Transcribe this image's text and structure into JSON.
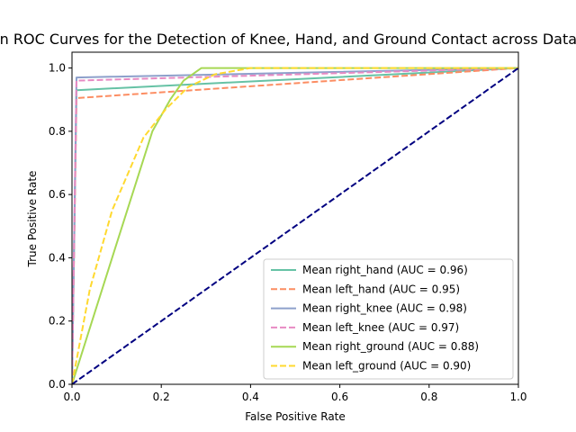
{
  "chart_data": {
    "type": "line",
    "title": "Mean ROC Curves for the Detection of Knee, Hand, and Ground Contact across Datasets",
    "xlabel": "False Positive Rate",
    "ylabel": "True Positive Rate",
    "xlim": [
      0,
      1.0
    ],
    "ylim": [
      0,
      1.05
    ],
    "x_ticks": [
      "0.0",
      "0.2",
      "0.4",
      "0.6",
      "0.8",
      "1.0"
    ],
    "y_ticks": [
      "0.0",
      "0.2",
      "0.4",
      "0.6",
      "0.8",
      "1.0"
    ],
    "grid": false,
    "legend_position": "lower-right",
    "series": [
      {
        "name": "Mean right_hand (AUC = 0.96)",
        "color": "#66c2a5",
        "style": "solid",
        "points": [
          [
            0,
            0
          ],
          [
            0.01,
            0.93
          ],
          [
            1.0,
            1.0
          ]
        ]
      },
      {
        "name": "Mean left_hand (AUC = 0.95)",
        "color": "#fc8d62",
        "style": "dashed",
        "points": [
          [
            0,
            0
          ],
          [
            0.01,
            0.905
          ],
          [
            1.0,
            1.0
          ]
        ]
      },
      {
        "name": "Mean right_knee (AUC = 0.98)",
        "color": "#8da0cb",
        "style": "solid",
        "points": [
          [
            0,
            0
          ],
          [
            0.01,
            0.97
          ],
          [
            1.0,
            1.0
          ]
        ]
      },
      {
        "name": "Mean left_knee (AUC = 0.97)",
        "color": "#e78ac3",
        "style": "dashed",
        "points": [
          [
            0,
            0
          ],
          [
            0.01,
            0.96
          ],
          [
            1.0,
            1.0
          ]
        ]
      },
      {
        "name": "Mean right_ground (AUC = 0.88)",
        "color": "#a6d854",
        "style": "solid",
        "points": [
          [
            0,
            0
          ],
          [
            0.09,
            0.4
          ],
          [
            0.18,
            0.8
          ],
          [
            0.22,
            0.9
          ],
          [
            0.25,
            0.96
          ],
          [
            0.29,
            1.0
          ],
          [
            1.0,
            1.0
          ]
        ]
      },
      {
        "name": "Mean left_ground (AUC = 0.90)",
        "color": "#ffd92f",
        "style": "dashed",
        "points": [
          [
            0,
            0
          ],
          [
            0.04,
            0.3
          ],
          [
            0.09,
            0.55
          ],
          [
            0.16,
            0.78
          ],
          [
            0.21,
            0.87
          ],
          [
            0.26,
            0.94
          ],
          [
            0.32,
            0.98
          ],
          [
            0.4,
            1.0
          ],
          [
            1.0,
            1.0
          ]
        ]
      }
    ],
    "reference_line": {
      "color": "#000080",
      "style": "dashed",
      "points": [
        [
          0,
          0
        ],
        [
          1.0,
          1.0
        ]
      ]
    }
  }
}
